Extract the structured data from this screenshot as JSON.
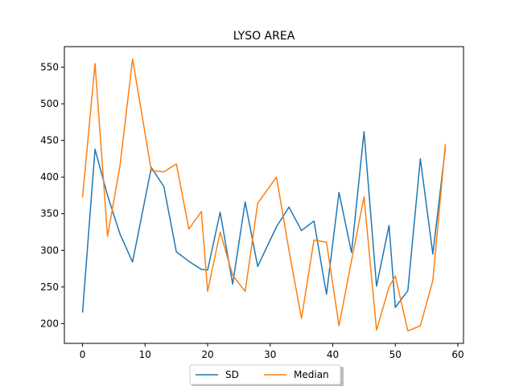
{
  "chart_data": {
    "type": "line",
    "title": "LYSO AREA",
    "xlabel": "",
    "ylabel": "",
    "xlim": [
      -2.9,
      60.9
    ],
    "ylim": [
      173,
      578
    ],
    "xticks": [
      0,
      10,
      20,
      30,
      40,
      50,
      60
    ],
    "yticks": [
      200,
      250,
      300,
      350,
      400,
      450,
      500,
      550
    ],
    "grid": false,
    "legend": "bottom-center outside",
    "series": [
      {
        "name": "SD",
        "color": "#1f77b4",
        "x": [
          0,
          2,
          4,
          6,
          8,
          11,
          13,
          15,
          17,
          19,
          20,
          22,
          24,
          26,
          28,
          31,
          33,
          35,
          37,
          39,
          41,
          43,
          45,
          47,
          49,
          50,
          52,
          54,
          56,
          58
        ],
        "y": [
          215,
          438,
          375,
          322,
          284,
          413,
          387,
          298,
          285,
          274,
          273,
          352,
          254,
          366,
          278,
          332,
          359,
          327,
          340,
          240,
          379,
          297,
          462,
          251,
          334,
          222,
          245,
          425,
          295,
          440
        ]
      },
      {
        "name": "Median",
        "color": "#ff7f0e",
        "x": [
          0,
          2,
          4,
          6,
          8,
          11,
          13,
          15,
          17,
          19,
          20,
          22,
          24,
          26,
          28,
          31,
          33,
          35,
          37,
          39,
          41,
          43,
          45,
          47,
          49,
          50,
          52,
          54,
          56,
          58
        ],
        "y": [
          372,
          555,
          319,
          416,
          561,
          409,
          407,
          418,
          329,
          353,
          244,
          325,
          266,
          244,
          364,
          400,
          300,
          207,
          314,
          311,
          197,
          286,
          373,
          191,
          250,
          265,
          190,
          197,
          259,
          445
        ]
      }
    ]
  }
}
